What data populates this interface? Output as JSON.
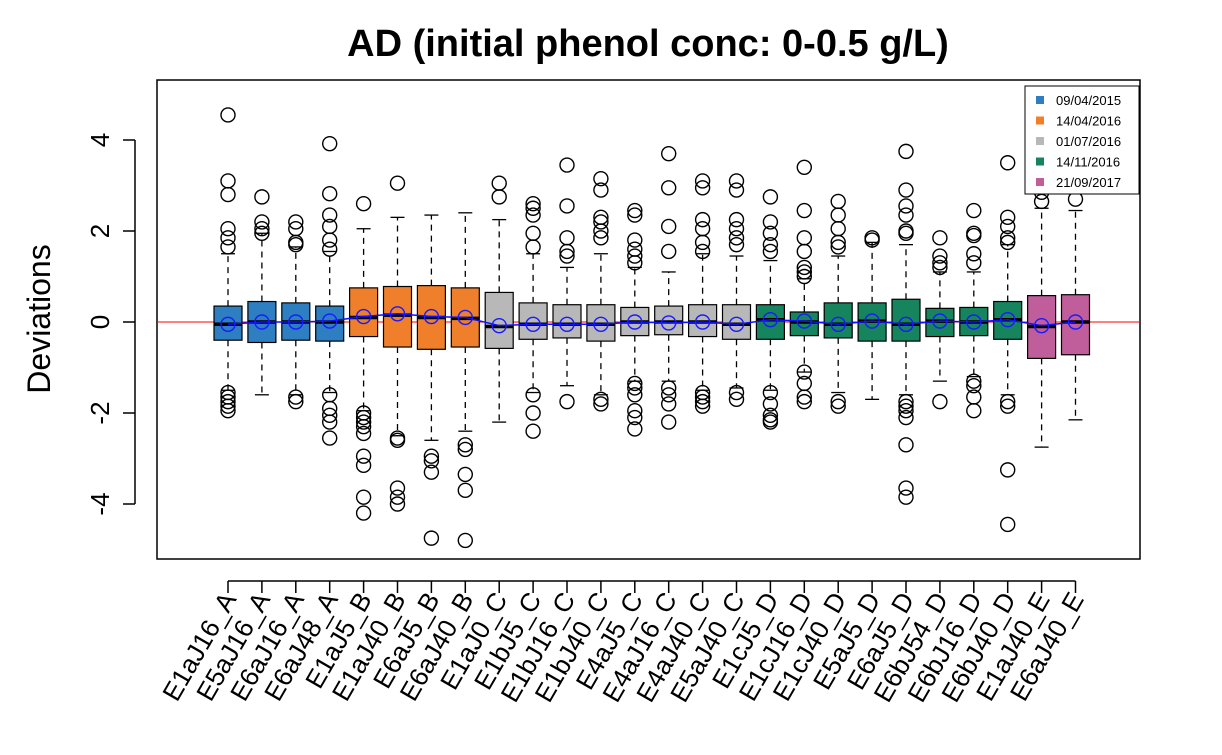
{
  "chart_data": {
    "type": "box",
    "title": "AD (initial phenol conc: 0-0.5 g/L)",
    "xlabel": "",
    "ylabel": "Deviations",
    "ylim": [
      -5.3,
      5.4
    ],
    "yticks": [
      -4,
      -2,
      0,
      2,
      4
    ],
    "reference_line": 0,
    "legend": {
      "position": "top-right",
      "entries": [
        {
          "label": "09/04/2015",
          "color": "#2e7ec2"
        },
        {
          "label": "14/04/2016",
          "color": "#f07f2b"
        },
        {
          "label": "01/07/2016",
          "color": "#b8b8b8"
        },
        {
          "label": "14/11/2016",
          "color": "#16845c"
        },
        {
          "label": "21/09/2017",
          "color": "#bf5e9a"
        }
      ]
    },
    "boxes": [
      {
        "label": "E1aJ16_A",
        "group": 0,
        "lw": -1.5,
        "q1": -0.4,
        "med": -0.05,
        "q3": 0.35,
        "uw": 1.5,
        "mean": -0.05,
        "out": [
          4.55,
          3.1,
          2.8,
          2.05,
          1.85,
          1.65,
          -1.55,
          -1.65,
          -1.75,
          -1.85,
          -1.95
        ]
      },
      {
        "label": "E5aJ16_A",
        "group": 0,
        "lw": -1.6,
        "q1": -0.45,
        "med": 0.0,
        "q3": 0.45,
        "uw": 1.95,
        "mean": 0.0,
        "out": [
          2.75,
          2.2,
          2.05,
          1.95
        ]
      },
      {
        "label": "E6aJ16_A",
        "group": 0,
        "lw": -1.6,
        "q1": -0.4,
        "med": 0.0,
        "q3": 0.42,
        "uw": 1.65,
        "mean": 0.0,
        "out": [
          2.2,
          2.05,
          1.75,
          1.7,
          -1.65,
          -1.75
        ]
      },
      {
        "label": "E6aJ48_A",
        "group": 0,
        "lw": -1.55,
        "q1": -0.42,
        "med": 0.0,
        "q3": 0.35,
        "uw": 1.55,
        "mean": 0.02,
        "out": [
          3.92,
          2.82,
          2.35,
          2.1,
          1.8,
          1.6,
          -1.6,
          -1.9,
          -2.05,
          -2.2,
          -2.55
        ]
      },
      {
        "label": "E1aJ5_B",
        "group": 1,
        "lw": -1.95,
        "q1": -0.32,
        "med": 0.1,
        "q3": 0.75,
        "uw": 2.05,
        "mean": 0.12,
        "out": [
          2.6,
          -2.0,
          -2.1,
          -2.2,
          -2.3,
          -2.45,
          -2.95,
          -3.15,
          -3.85,
          -4.2
        ]
      },
      {
        "label": "E1aJ40_B",
        "group": 1,
        "lw": -2.5,
        "q1": -0.55,
        "med": 0.15,
        "q3": 0.78,
        "uw": 2.3,
        "mean": 0.18,
        "out": [
          3.05,
          -2.55,
          -2.6,
          -3.65,
          -3.85,
          -4.0
        ]
      },
      {
        "label": "E6aJ5_B",
        "group": 1,
        "lw": -2.6,
        "q1": -0.6,
        "med": 0.1,
        "q3": 0.8,
        "uw": 2.35,
        "mean": 0.12,
        "out": [
          -2.95,
          -3.05,
          -3.3,
          -4.75
        ]
      },
      {
        "label": "E6aJ40_B",
        "group": 1,
        "lw": -2.4,
        "q1": -0.55,
        "med": 0.08,
        "q3": 0.75,
        "uw": 2.4,
        "mean": 0.1,
        "out": [
          -2.7,
          -2.8,
          -3.35,
          -3.7,
          -4.8
        ]
      },
      {
        "label": "E1aJ0_C",
        "group": 2,
        "lw": -2.2,
        "q1": -0.58,
        "med": -0.1,
        "q3": 0.65,
        "uw": 2.25,
        "mean": -0.08,
        "out": [
          3.05,
          2.75
        ]
      },
      {
        "label": "E1bJ5_C",
        "group": 2,
        "lw": -1.55,
        "q1": -0.38,
        "med": -0.05,
        "q3": 0.42,
        "uw": 1.5,
        "mean": -0.05,
        "out": [
          2.6,
          2.5,
          2.35,
          1.95,
          1.65,
          -1.6,
          -2.0,
          -2.4
        ]
      },
      {
        "label": "E1bJ16_C",
        "group": 2,
        "lw": -1.4,
        "q1": -0.35,
        "med": -0.05,
        "q3": 0.38,
        "uw": 1.2,
        "mean": -0.05,
        "out": [
          3.45,
          2.55,
          1.85,
          1.55,
          1.45,
          -1.75
        ]
      },
      {
        "label": "E1bJ40_C",
        "group": 2,
        "lw": -1.6,
        "q1": -0.42,
        "med": -0.05,
        "q3": 0.38,
        "uw": 1.5,
        "mean": -0.05,
        "out": [
          3.15,
          2.9,
          2.3,
          2.2,
          2.0,
          1.85,
          -1.7,
          -1.8
        ]
      },
      {
        "label": "E4aJ5_C",
        "group": 2,
        "lw": -1.3,
        "q1": -0.3,
        "med": 0.0,
        "q3": 0.32,
        "uw": 1.2,
        "mean": 0.0,
        "out": [
          2.45,
          2.35,
          1.8,
          1.6,
          1.45,
          1.3,
          -1.35,
          -1.45,
          -1.6,
          -1.95,
          -2.1,
          -2.35
        ]
      },
      {
        "label": "E4aJ16_C",
        "group": 2,
        "lw": -1.3,
        "q1": -0.28,
        "med": 0.0,
        "q3": 0.35,
        "uw": 1.1,
        "mean": -0.02,
        "out": [
          3.7,
          2.95,
          2.1,
          1.55,
          -1.45,
          -1.6,
          -1.8,
          -2.2
        ]
      },
      {
        "label": "E4aJ40_C",
        "group": 2,
        "lw": -1.5,
        "q1": -0.32,
        "med": 0.0,
        "q3": 0.38,
        "uw": 1.5,
        "mean": 0.0,
        "out": [
          3.1,
          2.95,
          2.25,
          2.05,
          1.75,
          1.55,
          -1.55,
          -1.65,
          -1.75,
          -1.85
        ]
      },
      {
        "label": "E5aJ40_C",
        "group": 2,
        "lw": -1.45,
        "q1": -0.38,
        "med": -0.05,
        "q3": 0.38,
        "uw": 1.45,
        "mean": -0.05,
        "out": [
          3.1,
          2.9,
          2.25,
          2.05,
          1.85,
          1.7,
          -1.55,
          -1.7
        ]
      },
      {
        "label": "E1cJ5_D",
        "group": 3,
        "lw": -1.5,
        "q1": -0.38,
        "med": 0.05,
        "q3": 0.38,
        "uw": 1.35,
        "mean": 0.05,
        "out": [
          2.75,
          2.2,
          1.95,
          1.7,
          1.55,
          -1.55,
          -1.8,
          -2.05,
          -2.15,
          -2.2
        ]
      },
      {
        "label": "E1cJ16_D",
        "group": 3,
        "lw": -1.1,
        "q1": -0.3,
        "med": 0.0,
        "q3": 0.22,
        "uw": 0.95,
        "mean": 0.02,
        "out": [
          3.4,
          2.45,
          1.85,
          1.55,
          1.2,
          1.1,
          1.0,
          -1.1,
          -1.35,
          -1.65,
          -1.75
        ]
      },
      {
        "label": "E1cJ40_D",
        "group": 3,
        "lw": -1.55,
        "q1": -0.35,
        "med": -0.05,
        "q3": 0.42,
        "uw": 1.45,
        "mean": -0.05,
        "out": [
          2.65,
          2.35,
          2.05,
          1.75,
          1.65,
          -1.75,
          -1.85
        ]
      },
      {
        "label": "E5aJ5_D",
        "group": 3,
        "lw": -1.7,
        "q1": -0.42,
        "med": 0.02,
        "q3": 0.42,
        "uw": 1.75,
        "mean": 0.02,
        "out": [
          1.85,
          1.8
        ]
      },
      {
        "label": "E6aJ5_D",
        "group": 3,
        "lw": -1.6,
        "q1": -0.42,
        "med": -0.05,
        "q3": 0.5,
        "uw": 1.7,
        "mean": -0.05,
        "out": [
          3.75,
          2.9,
          2.55,
          2.35,
          2.0,
          1.95,
          -1.75,
          -1.85,
          -1.95,
          -2.1,
          -2.7,
          -3.65,
          -3.85
        ]
      },
      {
        "label": "E6bJ54_D",
        "group": 3,
        "lw": -1.3,
        "q1": -0.32,
        "med": 0.02,
        "q3": 0.3,
        "uw": 1.1,
        "mean": 0.02,
        "out": [
          1.85,
          1.45,
          1.3,
          1.2,
          -1.75
        ]
      },
      {
        "label": "E6bJ16_D",
        "group": 3,
        "lw": -1.2,
        "q1": -0.3,
        "med": 0.0,
        "q3": 0.32,
        "uw": 1.1,
        "mean": 0.0,
        "out": [
          2.45,
          1.95,
          1.9,
          1.5,
          1.3,
          -1.3,
          -1.4,
          -1.65,
          -1.95
        ]
      },
      {
        "label": "E6bJ40_D",
        "group": 3,
        "lw": -1.6,
        "q1": -0.38,
        "med": 0.05,
        "q3": 0.45,
        "uw": 1.7,
        "mean": 0.05,
        "out": [
          3.5,
          2.3,
          2.1,
          1.85,
          1.75,
          -1.75,
          -1.85,
          -3.25,
          -4.45
        ]
      },
      {
        "label": "E1aJ40_E",
        "group": 4,
        "lw": -2.75,
        "q1": -0.8,
        "med": -0.1,
        "q3": 0.58,
        "uw": 2.5,
        "mean": -0.08,
        "out": [
          2.85,
          2.65
        ]
      },
      {
        "label": "E6aJ40_E",
        "group": 4,
        "lw": -2.15,
        "q1": -0.72,
        "med": 0.0,
        "q3": 0.6,
        "uw": 2.45,
        "mean": 0.0,
        "out": [
          2.7
        ]
      }
    ]
  }
}
